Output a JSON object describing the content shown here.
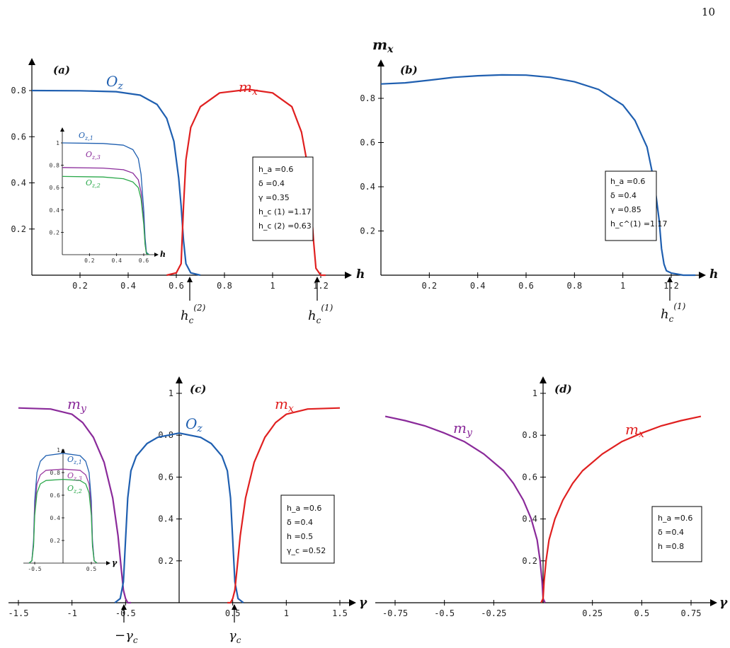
{
  "page_number": "10",
  "colors": {
    "blue": "#1f5fb0",
    "red": "#e02020",
    "purple": "#8a2a9a",
    "green": "#2aa84a",
    "violet": "#9a3aa0"
  },
  "chart_data": [
    {
      "id": "a",
      "type": "line",
      "panel_label": "(a)",
      "xlabel": "h",
      "ylabel": "",
      "xlim": [
        0,
        1.28
      ],
      "ylim": [
        0,
        0.9
      ],
      "xticks": [
        "0.2",
        "0.4",
        "0.6",
        "0.8",
        "1",
        "1.2"
      ],
      "yticks": [
        "0.2",
        "0.4",
        "0.6",
        "0.8"
      ],
      "series": [
        {
          "name": "O_z",
          "color": "#1f5fb0",
          "x": [
            0,
            0.2,
            0.35,
            0.45,
            0.52,
            0.56,
            0.59,
            0.61,
            0.62,
            0.63,
            0.64,
            0.66,
            0.7
          ],
          "y": [
            0.8,
            0.799,
            0.795,
            0.78,
            0.74,
            0.68,
            0.58,
            0.42,
            0.3,
            0.15,
            0.05,
            0.01,
            0
          ]
        },
        {
          "name": "m_x",
          "color": "#e02020",
          "x": [
            0.56,
            0.6,
            0.62,
            0.63,
            0.64,
            0.66,
            0.7,
            0.78,
            0.9,
            1.0,
            1.08,
            1.12,
            1.15,
            1.16,
            1.17,
            1.18,
            1.2,
            1.22
          ],
          "y": [
            0,
            0.01,
            0.05,
            0.3,
            0.5,
            0.64,
            0.73,
            0.79,
            0.805,
            0.79,
            0.73,
            0.62,
            0.45,
            0.3,
            0.15,
            0.03,
            0,
            0
          ]
        }
      ],
      "curve_labels": [
        "O_z",
        "m_x"
      ],
      "critical_labels": [
        "h_c^(2)",
        "h_c^(1)"
      ],
      "params": [
        "h_a =0.6",
        "δ =0.4",
        "γ =0.35",
        "h_c (1) =1.17",
        "h_c (2) =0.63"
      ],
      "inset": {
        "xlabel": "h",
        "xticks": [
          "0.2",
          "0.4",
          "0.6"
        ],
        "yticks": [
          "0.2",
          "0.4",
          "0.6",
          "0.8",
          "1"
        ],
        "series": [
          {
            "name": "O_z,1",
            "color": "#1f5fb0",
            "x": [
              0,
              0.3,
              0.45,
              0.52,
              0.56,
              0.58,
              0.6,
              0.61,
              0.62,
              0.64
            ],
            "y": [
              1.0,
              0.995,
              0.98,
              0.94,
              0.86,
              0.72,
              0.4,
              0.15,
              0.02,
              0
            ]
          },
          {
            "name": "O_z,3",
            "color": "#8a2a9a",
            "x": [
              0,
              0.3,
              0.45,
              0.52,
              0.56,
              0.58,
              0.6,
              0.61,
              0.62,
              0.64
            ],
            "y": [
              0.78,
              0.775,
              0.76,
              0.73,
              0.67,
              0.56,
              0.3,
              0.1,
              0.01,
              0
            ]
          },
          {
            "name": "O_z,2",
            "color": "#2aa84a",
            "x": [
              0,
              0.3,
              0.45,
              0.52,
              0.56,
              0.58,
              0.6,
              0.61,
              0.62,
              0.64
            ],
            "y": [
              0.7,
              0.695,
              0.68,
              0.65,
              0.6,
              0.5,
              0.27,
              0.09,
              0.01,
              0
            ]
          }
        ]
      }
    },
    {
      "id": "b",
      "type": "line",
      "panel_label": "(b)",
      "xlabel": "h",
      "ylabel": "m_x",
      "xlim": [
        0,
        1.3
      ],
      "ylim": [
        0,
        0.95
      ],
      "xticks": [
        "0.2",
        "0.4",
        "0.6",
        "0.8",
        "1",
        "1.2"
      ],
      "yticks": [
        "0.2",
        "0.4",
        "0.6",
        "0.8"
      ],
      "series": [
        {
          "name": "m_x",
          "color": "#1f5fb0",
          "x": [
            0,
            0.1,
            0.2,
            0.3,
            0.4,
            0.5,
            0.6,
            0.7,
            0.8,
            0.9,
            1.0,
            1.05,
            1.1,
            1.13,
            1.15,
            1.16,
            1.17,
            1.18,
            1.2,
            1.25,
            1.3
          ],
          "y": [
            0.865,
            0.87,
            0.882,
            0.895,
            0.902,
            0.906,
            0.905,
            0.895,
            0.875,
            0.84,
            0.77,
            0.7,
            0.58,
            0.42,
            0.25,
            0.12,
            0.05,
            0.02,
            0.01,
            0,
            0
          ]
        }
      ],
      "critical_labels": [
        "h_c^(1)"
      ],
      "params": [
        "h_a =0.6",
        "δ =0.4",
        "γ =0.85",
        "h_c^(1) =1.17"
      ]
    },
    {
      "id": "c",
      "type": "line",
      "panel_label": "(c)",
      "xlabel": "γ",
      "ylabel": "",
      "xlim": [
        -1.6,
        1.6
      ],
      "ylim": [
        0,
        1.1
      ],
      "xticks": [
        "-1.5",
        "-1",
        "-0.5",
        "0.5",
        "1",
        "1.5"
      ],
      "yticks": [
        "0.2",
        "0.4",
        "0.6",
        "0.8",
        "1"
      ],
      "series": [
        {
          "name": "m_y",
          "color": "#8a2a9a",
          "x": [
            -1.5,
            -1.2,
            -1.0,
            -0.9,
            -0.8,
            -0.7,
            -0.62,
            -0.57,
            -0.54,
            -0.52,
            -0.5,
            -0.48,
            -0.45
          ],
          "y": [
            0.93,
            0.925,
            0.9,
            0.86,
            0.79,
            0.67,
            0.5,
            0.32,
            0.16,
            0.06,
            0.02,
            0,
            0
          ]
        },
        {
          "name": "O_z",
          "color": "#1f5fb0",
          "x": [
            -0.6,
            -0.55,
            -0.52,
            -0.5,
            -0.48,
            -0.45,
            -0.4,
            -0.3,
            -0.2,
            0,
            0.2,
            0.3,
            0.4,
            0.45,
            0.48,
            0.5,
            0.52,
            0.55,
            0.6
          ],
          "y": [
            0,
            0.02,
            0.1,
            0.3,
            0.5,
            0.63,
            0.7,
            0.76,
            0.79,
            0.81,
            0.79,
            0.76,
            0.7,
            0.63,
            0.5,
            0.3,
            0.1,
            0.02,
            0
          ]
        },
        {
          "name": "m_x",
          "color": "#e02020",
          "x": [
            0.45,
            0.48,
            0.5,
            0.52,
            0.54,
            0.57,
            0.62,
            0.7,
            0.8,
            0.9,
            1.0,
            1.2,
            1.5
          ],
          "y": [
            0,
            0,
            0.02,
            0.06,
            0.16,
            0.32,
            0.5,
            0.67,
            0.79,
            0.86,
            0.9,
            0.925,
            0.93
          ]
        }
      ],
      "curve_labels": [
        "m_y",
        "O_z",
        "m_x"
      ],
      "critical_labels": [
        "-γ_c",
        "γ_c"
      ],
      "params": [
        "h_a =0.6",
        "δ =0.4",
        "h =0.5",
        "γ_c =0.52"
      ],
      "inset": {
        "xlabel": "γ",
        "xticks": [
          "-0.5",
          "0.5"
        ],
        "yticks": [
          "0.2",
          "0.4",
          "0.6",
          "0.8",
          "1"
        ],
        "series": [
          {
            "name": "O_z,1",
            "color": "#1f5fb0",
            "x": [
              -0.6,
              -0.55,
              -0.52,
              -0.5,
              -0.46,
              -0.4,
              -0.3,
              0,
              0.3,
              0.4,
              0.46,
              0.5,
              0.52,
              0.55,
              0.6
            ],
            "y": [
              0,
              0.02,
              0.2,
              0.55,
              0.8,
              0.9,
              0.95,
              0.97,
              0.95,
              0.9,
              0.8,
              0.55,
              0.2,
              0.02,
              0
            ]
          },
          {
            "name": "O_z,3",
            "color": "#9a3aa0",
            "x": [
              -0.6,
              -0.55,
              -0.52,
              -0.5,
              -0.46,
              -0.4,
              -0.3,
              0,
              0.3,
              0.4,
              0.46,
              0.5,
              0.52,
              0.55,
              0.6
            ],
            "y": [
              0,
              0.02,
              0.17,
              0.48,
              0.7,
              0.78,
              0.82,
              0.83,
              0.82,
              0.78,
              0.7,
              0.48,
              0.17,
              0.02,
              0
            ]
          },
          {
            "name": "O_z,2",
            "color": "#2aa84a",
            "x": [
              -0.6,
              -0.55,
              -0.52,
              -0.5,
              -0.46,
              -0.4,
              -0.3,
              0,
              0.3,
              0.4,
              0.46,
              0.5,
              0.52,
              0.55,
              0.6
            ],
            "y": [
              0,
              0.02,
              0.15,
              0.42,
              0.62,
              0.7,
              0.73,
              0.74,
              0.73,
              0.7,
              0.62,
              0.42,
              0.15,
              0.02,
              0
            ]
          }
        ]
      }
    },
    {
      "id": "d",
      "type": "line",
      "panel_label": "(d)",
      "xlabel": "γ",
      "ylabel": "",
      "xlim": [
        -0.85,
        0.85
      ],
      "ylim": [
        0,
        1.1
      ],
      "xticks": [
        "-0.75",
        "-0.5",
        "-0.25",
        "0.25",
        "0.5",
        "0.75"
      ],
      "yticks": [
        "0.2",
        "0.4",
        "0.6",
        "0.8",
        "1"
      ],
      "series": [
        {
          "name": "m_y",
          "color": "#8a2a9a",
          "x": [
            -0.8,
            -0.7,
            -0.6,
            -0.5,
            -0.4,
            -0.3,
            -0.2,
            -0.15,
            -0.1,
            -0.06,
            -0.03,
            -0.015,
            -0.005,
            0,
            0.01
          ],
          "y": [
            0.89,
            0.87,
            0.845,
            0.81,
            0.77,
            0.71,
            0.63,
            0.57,
            0.49,
            0.4,
            0.3,
            0.2,
            0.1,
            0.02,
            0
          ]
        },
        {
          "name": "m_x",
          "color": "#e02020",
          "x": [
            -0.01,
            0,
            0.005,
            0.015,
            0.03,
            0.06,
            0.1,
            0.15,
            0.2,
            0.3,
            0.4,
            0.5,
            0.6,
            0.7,
            0.8
          ],
          "y": [
            0,
            0.02,
            0.1,
            0.2,
            0.3,
            0.4,
            0.49,
            0.57,
            0.63,
            0.71,
            0.77,
            0.81,
            0.845,
            0.87,
            0.89
          ]
        }
      ],
      "curve_labels": [
        "m_y",
        "m_x"
      ],
      "params": [
        "h_a =0.6",
        "δ =0.4",
        "h =0.8"
      ]
    }
  ]
}
